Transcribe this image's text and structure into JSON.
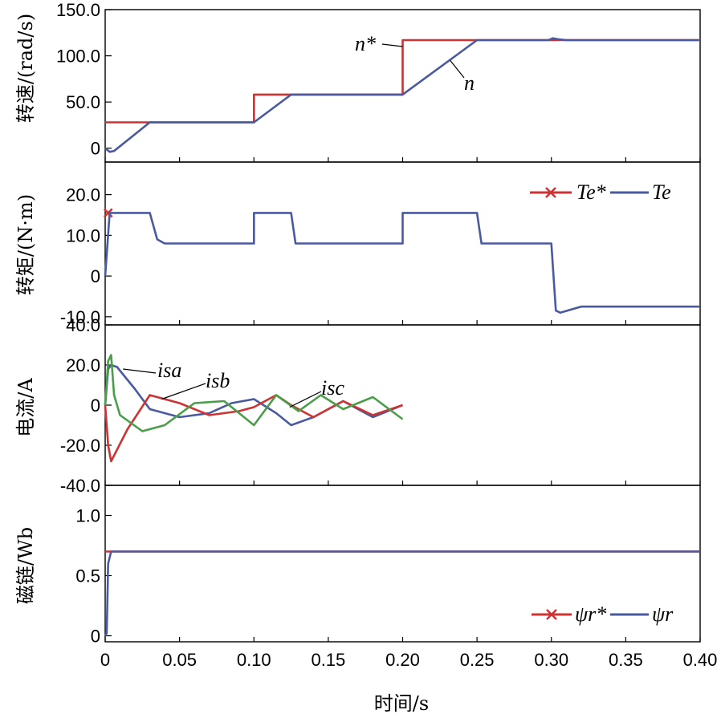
{
  "chart_data": [
    {
      "type": "line",
      "ylabel": "转速/(rad/s)",
      "ylim": [
        -15,
        150
      ],
      "yticks": [
        {
          "v": 150,
          "label": "150.0"
        },
        {
          "v": 100,
          "label": "100.0"
        },
        {
          "v": 50,
          "label": "50.0"
        },
        {
          "v": 0,
          "label": "0"
        }
      ],
      "series": [
        {
          "name": "n*",
          "color": "#cc3333",
          "x": [
            0,
            0.1,
            0.1,
            0.2,
            0.2,
            0.4
          ],
          "y": [
            28,
            28,
            58,
            58,
            117,
            117
          ]
        },
        {
          "name": "n",
          "color": "#4a5a9e",
          "x": [
            0,
            0.003,
            0.006,
            0.03,
            0.1,
            0.125,
            0.2,
            0.25,
            0.298,
            0.301,
            0.304,
            0.31,
            0.4
          ],
          "y": [
            0,
            -4,
            -3,
            28,
            28,
            58,
            58,
            117,
            117,
            119,
            118,
            117,
            117
          ]
        }
      ],
      "annotations": [
        {
          "text": "n*",
          "x": 0.19,
          "y": 132
        },
        {
          "text": "n",
          "x": 0.248,
          "y": 78
        }
      ]
    },
    {
      "type": "line",
      "ylabel": "转矩/(N·m)",
      "ylim": [
        -12,
        28
      ],
      "yticks": [
        {
          "v": 20,
          "label": "20.0"
        },
        {
          "v": 10,
          "label": "10.0"
        },
        {
          "v": 0,
          "label": "0"
        },
        {
          "v": -10,
          "label": "-10.0"
        }
      ],
      "legend": {
        "position": "top-right",
        "entries": [
          "Te*",
          "Te"
        ]
      },
      "series": [
        {
          "name": "Te*",
          "color": "#cc3333",
          "x": [
            0.002
          ],
          "y": [
            15.5
          ],
          "marker": "x"
        },
        {
          "name": "Te",
          "color": "#4a5a9e",
          "x": [
            0,
            0.003,
            0.004,
            0.03,
            0.035,
            0.04,
            0.1,
            0.1,
            0.125,
            0.128,
            0.2,
            0.2,
            0.25,
            0.253,
            0.3,
            0.303,
            0.306,
            0.32,
            0.4
          ],
          "y": [
            0,
            15.5,
            15.5,
            15.5,
            9,
            8,
            8,
            15.5,
            15.5,
            8,
            8,
            15.5,
            15.5,
            8,
            8,
            -8.5,
            -9,
            -7.5,
            -7.5
          ]
        }
      ]
    },
    {
      "type": "line",
      "ylabel": "电流/A",
      "ylim": [
        -40,
        40
      ],
      "yticks": [
        {
          "v": 40,
          "label": "40.0"
        },
        {
          "v": 20,
          "label": "20.0"
        },
        {
          "v": 0,
          "label": "0"
        },
        {
          "v": -20,
          "label": "-20.0"
        },
        {
          "v": -40,
          "label": "-40.0"
        }
      ],
      "series": [
        {
          "name": "isa",
          "color": "#4a5a9e",
          "x": [
            0,
            0.002,
            0.004,
            0.008,
            0.02,
            0.03,
            0.05,
            0.07,
            0.085,
            0.1,
            0.115,
            0.125,
            0.14,
            0.16,
            0.18,
            0.2
          ],
          "y": [
            0,
            18,
            20,
            19,
            8,
            -2,
            -6,
            -4,
            1,
            3,
            -4,
            -10,
            -6,
            2,
            -6,
            0
          ]
        },
        {
          "name": "isb",
          "color": "#cc3333",
          "x": [
            0,
            0.002,
            0.004,
            0.015,
            0.03,
            0.05,
            0.07,
            0.09,
            0.1,
            0.115,
            0.125,
            0.14,
            0.16,
            0.18,
            0.2
          ],
          "y": [
            0,
            -20,
            -28,
            -12,
            5,
            1,
            -5,
            -3,
            -1,
            5,
            0,
            -6,
            2,
            -5,
            0
          ]
        },
        {
          "name": "isc",
          "color": "#4a9e4a",
          "x": [
            0,
            0.002,
            0.004,
            0.006,
            0.01,
            0.025,
            0.04,
            0.06,
            0.08,
            0.1,
            0.115,
            0.13,
            0.145,
            0.16,
            0.18,
            0.2
          ],
          "y": [
            0,
            22,
            25,
            5,
            -5,
            -13,
            -10,
            1,
            2,
            -10,
            5,
            -3,
            5,
            -2,
            4,
            -7
          ]
        }
      ],
      "annotations": [
        {
          "text": "isa",
          "x": 0.028,
          "y": 14
        },
        {
          "text": "isb",
          "x": 0.068,
          "y": 9
        },
        {
          "text": "isc",
          "x": 0.148,
          "y": 7
        }
      ]
    },
    {
      "type": "line",
      "ylabel": "磁链/Wb",
      "xlabel": "时间/s",
      "xlim": [
        0,
        0.4
      ],
      "ylim": [
        -0.05,
        1.25
      ],
      "yticks": [
        {
          "v": 1.0,
          "label": "1.0"
        },
        {
          "v": 0.5,
          "label": "0.5"
        },
        {
          "v": 0,
          "label": "0"
        }
      ],
      "xticks": [
        {
          "v": 0,
          "label": "0"
        },
        {
          "v": 0.05,
          "label": "0.05"
        },
        {
          "v": 0.1,
          "label": "0.10"
        },
        {
          "v": 0.15,
          "label": "0.15"
        },
        {
          "v": 0.2,
          "label": "0.20"
        },
        {
          "v": 0.25,
          "label": "0.25"
        },
        {
          "v": 0.3,
          "label": "0.30"
        },
        {
          "v": 0.35,
          "label": "0.35"
        },
        {
          "v": 0.4,
          "label": "0.40"
        }
      ],
      "legend": {
        "position": "bottom-right",
        "entries": [
          "ψr*",
          "ψr"
        ]
      },
      "series": [
        {
          "name": "ψr*",
          "color": "#cc3333",
          "x": [
            0,
            0.002,
            0.4
          ],
          "y": [
            0.7,
            0.7,
            0.7
          ]
        },
        {
          "name": "ψr",
          "color": "#4a5a9e",
          "x": [
            0,
            0.001,
            0.002,
            0.004,
            0.4
          ],
          "y": [
            0,
            0.02,
            0.6,
            0.7,
            0.7
          ]
        }
      ]
    }
  ]
}
